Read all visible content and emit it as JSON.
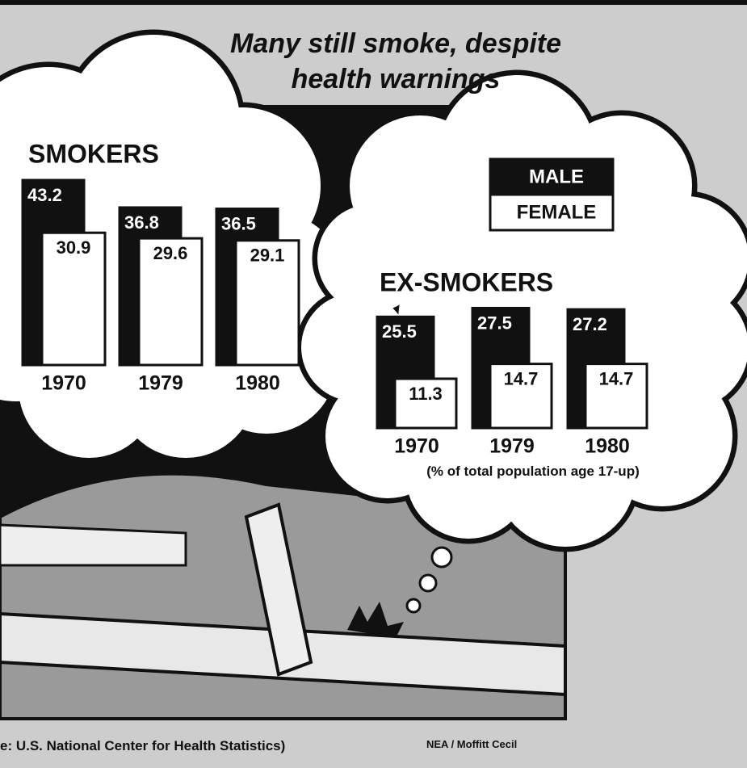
{
  "title": "Many still smoke, despite health warnings",
  "note": "(% of total population age 17-up)",
  "source": "e: U.S. National Center for Health Statistics)",
  "credit": "NEA / Moffitt Cecil",
  "chart_data": [
    {
      "type": "bar",
      "title": "SMOKERS",
      "categories": [
        "1970",
        "1979",
        "1980"
      ],
      "series": [
        {
          "name": "MALE",
          "color": "#111111",
          "values": [
            43.2,
            36.8,
            36.5
          ]
        },
        {
          "name": "FEMALE",
          "color": "#ffffff",
          "values": [
            30.9,
            29.6,
            29.1
          ]
        }
      ]
    },
    {
      "type": "bar",
      "title": "EX-SMOKERS",
      "categories": [
        "1970",
        "1979",
        "1980"
      ],
      "series": [
        {
          "color": "#111111",
          "values": [
            25.5,
            27.5,
            27.2
          ]
        },
        {
          "color": "#ffffff",
          "values": [
            11.3,
            14.7,
            14.7
          ]
        }
      ]
    }
  ]
}
